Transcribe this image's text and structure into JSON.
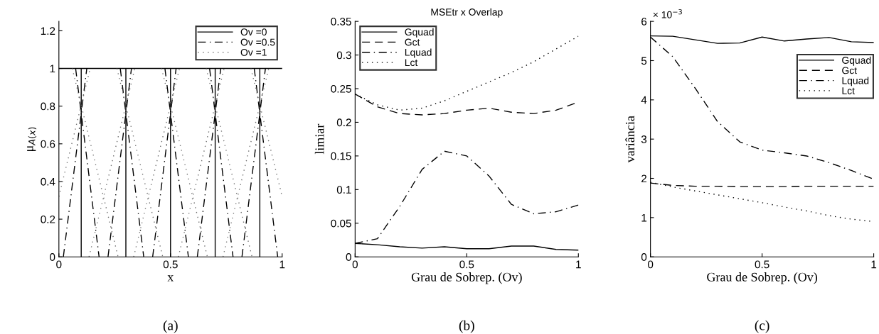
{
  "chart_data": [
    {
      "type": "line",
      "xlabel": "x",
      "ylabel": "μ$_{A(x)}$",
      "xlim": [
        0,
        1
      ],
      "xticks": [
        0,
        0.5,
        1
      ],
      "ylim": [
        0,
        1.25
      ],
      "yticks": [
        0,
        0.2,
        0.4,
        0.6,
        0.8,
        1,
        1.2
      ],
      "legend": "top right",
      "grid": false,
      "annotations": [
        "(a)"
      ],
      "series": [
        {
          "name": "Ov =0",
          "color": "#000000",
          "line_style": "solid",
          "x": [
            0,
            0.1,
            0.1,
            0.1,
            0.3,
            0.3,
            0.3,
            0.5,
            0.5,
            0.5,
            0.7,
            0.7,
            0.7,
            0.9,
            0.9,
            0.9,
            1
          ],
          "values": [
            1,
            1,
            0,
            1,
            1,
            0,
            1,
            1,
            0,
            1,
            1,
            0,
            1,
            1,
            0,
            1,
            1
          ]
        },
        {
          "name": "Ov =0.5",
          "color": "#000000",
          "line_style": "dashdot",
          "x": [
            0.02,
            0.125,
            null,
            0.075,
            0.18,
            null,
            0.22,
            0.325,
            null,
            0.275,
            0.38,
            null,
            0.42,
            0.525,
            null,
            0.475,
            0.58,
            null,
            0.62,
            0.725,
            null,
            0.675,
            0.78,
            null,
            0.82,
            0.925,
            null,
            0.875,
            0.98
          ],
          "values": [
            0,
            1,
            null,
            1,
            0,
            null,
            0,
            1,
            null,
            1,
            0,
            null,
            0,
            1,
            null,
            1,
            0,
            null,
            0,
            1,
            null,
            1,
            0,
            null,
            0,
            1,
            null,
            1,
            0
          ]
        },
        {
          "name": "Ov =1",
          "color": "#707070",
          "line_style": "dotted",
          "x": [
            0,
            0.14,
            null,
            0.06,
            0.265,
            null,
            0.135,
            0.34,
            null,
            0.26,
            0.465,
            null,
            0.335,
            0.54,
            null,
            0.46,
            0.665,
            null,
            0.535,
            0.74,
            null,
            0.66,
            0.865,
            null,
            0.735,
            0.94,
            null,
            0.86,
            1
          ],
          "values": [
            0.32,
            1,
            null,
            1,
            0,
            null,
            0,
            1,
            null,
            1,
            0,
            null,
            0,
            1,
            null,
            1,
            0,
            null,
            0,
            1,
            null,
            1,
            0,
            null,
            0,
            1,
            null,
            1,
            0.32
          ]
        }
      ]
    },
    {
      "type": "line",
      "title": "MSEtr x Overlap",
      "xlabel": "Grau de Sobrep. (Ov)",
      "ylabel": "limiar",
      "x": [
        0,
        0.1,
        0.2,
        0.3,
        0.4,
        0.5,
        0.6,
        0.7,
        0.8,
        0.9,
        1
      ],
      "xlim": [
        0,
        1
      ],
      "xticks": [
        0,
        0.5,
        1
      ],
      "ylim": [
        0,
        0.35
      ],
      "yticks": [
        0,
        0.05,
        0.1,
        0.15,
        0.2,
        0.25,
        0.3,
        0.35
      ],
      "legend": "top left",
      "grid": false,
      "annotations": [
        "(b)"
      ],
      "series": [
        {
          "name": "Gquad",
          "color": "#000000",
          "line_style": "solid",
          "values": [
            0.02,
            0.018,
            0.015,
            0.013,
            0.015,
            0.012,
            0.012,
            0.016,
            0.016,
            0.011,
            0.01
          ]
        },
        {
          "name": "Gct",
          "color": "#000000",
          "line_style": "dashed",
          "values": [
            0.242,
            0.223,
            0.213,
            0.211,
            0.213,
            0.218,
            0.221,
            0.215,
            0.213,
            0.218,
            0.23
          ]
        },
        {
          "name": "Lquad",
          "color": "#000000",
          "line_style": "dashdot",
          "values": [
            0.02,
            0.027,
            0.075,
            0.13,
            0.157,
            0.15,
            0.12,
            0.078,
            0.064,
            0.067,
            0.077
          ]
        },
        {
          "name": "Lct",
          "color": "#000000",
          "line_style": "dotted",
          "values": [
            0.242,
            0.226,
            0.218,
            0.221,
            0.232,
            0.246,
            0.26,
            0.274,
            0.29,
            0.309,
            0.328
          ]
        }
      ]
    },
    {
      "type": "line",
      "xlabel": "Grau de Sobrep. (Ov)",
      "ylabel": "variância",
      "x": [
        0,
        0.1,
        0.2,
        0.3,
        0.4,
        0.5,
        0.6,
        0.7,
        0.8,
        0.9,
        1
      ],
      "xlim": [
        0,
        1
      ],
      "xticks": [
        0,
        0.5,
        1
      ],
      "ylim": [
        0,
        6
      ],
      "yticks": [
        0,
        1,
        2,
        3,
        4,
        5,
        6
      ],
      "legend": "top right",
      "grid": false,
      "annotations": [
        "× 10$^{−3}$",
        "(c)"
      ],
      "series": [
        {
          "name": "Gquad",
          "color": "#000000",
          "line_style": "solid",
          "values": [
            5.63,
            5.62,
            5.53,
            5.44,
            5.45,
            5.6,
            5.5,
            5.55,
            5.59,
            5.48,
            5.46
          ]
        },
        {
          "name": "Gct",
          "color": "#000000",
          "line_style": "dashed",
          "values": [
            1.88,
            1.82,
            1.8,
            1.8,
            1.79,
            1.79,
            1.79,
            1.8,
            1.8,
            1.8,
            1.8
          ]
        },
        {
          "name": "Lquad",
          "color": "#000000",
          "line_style": "dashdot",
          "values": [
            5.6,
            5.1,
            4.3,
            3.45,
            2.93,
            2.72,
            2.65,
            2.57,
            2.4,
            2.2,
            1.98
          ]
        },
        {
          "name": "Lct",
          "color": "#000000",
          "line_style": "dotted",
          "values": [
            1.9,
            1.78,
            1.68,
            1.58,
            1.48,
            1.38,
            1.27,
            1.17,
            1.05,
            0.96,
            0.9
          ]
        }
      ]
    }
  ]
}
